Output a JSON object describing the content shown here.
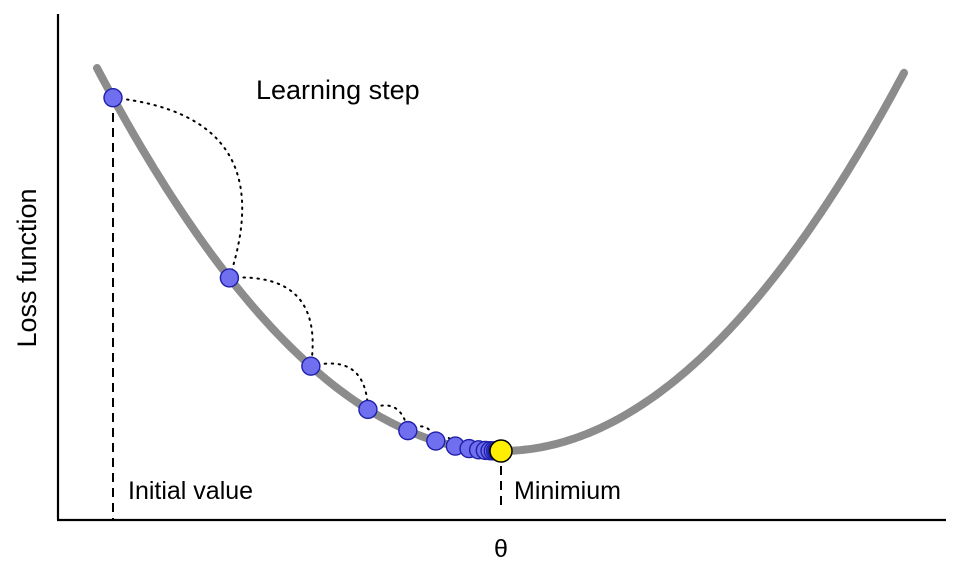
{
  "labels": {
    "y_axis": "Loss function",
    "x_axis": "θ",
    "learning_step": "Learning step",
    "initial_value": "Initial value",
    "minimum": "Minimium"
  },
  "colors": {
    "curve": "#8c8c8c",
    "step_point_fill": "#6f6ff0",
    "step_point_stroke": "#1f1fa8",
    "minimum_point_fill": "#ffee00"
  },
  "diagram": {
    "step_points_shown": 15,
    "convergence_ratio": 0.7
  }
}
